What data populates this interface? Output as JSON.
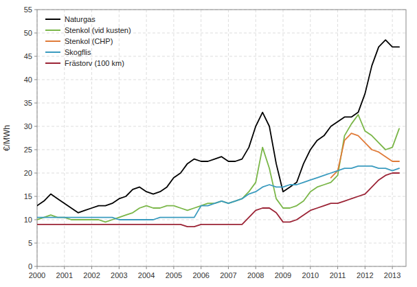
{
  "chart_data": {
    "type": "line",
    "y_label": "€/MWh",
    "xlim": [
      2000,
      2013.5
    ],
    "ylim": [
      0,
      55
    ],
    "xticks": [
      2000,
      2001,
      2002,
      2003,
      2004,
      2005,
      2006,
      2007,
      2008,
      2009,
      2010,
      2011,
      2012,
      2013
    ],
    "yticks": [
      0,
      5,
      10,
      15,
      20,
      25,
      30,
      35,
      40,
      45,
      50,
      55
    ],
    "grid": true,
    "legend": "upper-left",
    "x": [
      2000.0,
      2000.25,
      2000.5,
      2000.75,
      2001.0,
      2001.25,
      2001.5,
      2001.75,
      2002.0,
      2002.25,
      2002.5,
      2002.75,
      2003.0,
      2003.25,
      2003.5,
      2003.75,
      2004.0,
      2004.25,
      2004.5,
      2004.75,
      2005.0,
      2005.25,
      2005.5,
      2005.75,
      2006.0,
      2006.25,
      2006.5,
      2006.75,
      2007.0,
      2007.25,
      2007.5,
      2007.75,
      2008.0,
      2008.25,
      2008.5,
      2008.75,
      2009.0,
      2009.25,
      2009.5,
      2009.75,
      2010.0,
      2010.25,
      2010.5,
      2010.75,
      2011.0,
      2011.25,
      2011.5,
      2011.75,
      2012.0,
      2012.25,
      2012.5,
      2012.75,
      2013.0,
      2013.25
    ],
    "series": [
      {
        "name": "Naturgas",
        "color": "#000000",
        "values": [
          13.0,
          14.0,
          15.5,
          14.5,
          13.5,
          12.5,
          11.5,
          12.0,
          12.5,
          13.0,
          13.0,
          13.5,
          14.5,
          15.0,
          16.5,
          17.0,
          16.0,
          15.5,
          16.0,
          17.0,
          19.0,
          20.0,
          22.0,
          23.0,
          22.5,
          22.5,
          23.0,
          23.5,
          22.5,
          22.5,
          23.0,
          25.5,
          30.0,
          33.0,
          30.0,
          22.0,
          16.0,
          17.0,
          18.0,
          22.0,
          25.0,
          27.0,
          28.0,
          30.0,
          31.0,
          32.0,
          32.0,
          33.0,
          37.0,
          43.0,
          47.0,
          48.5,
          47.0,
          47.0
        ]
      },
      {
        "name": "Stenkol (vid kusten)",
        "color": "#7ab648",
        "values": [
          10.0,
          10.5,
          11.0,
          10.5,
          10.5,
          10.0,
          10.0,
          10.0,
          10.0,
          10.0,
          9.5,
          10.0,
          10.5,
          11.0,
          11.5,
          12.5,
          13.0,
          12.5,
          12.5,
          13.0,
          13.0,
          12.5,
          12.0,
          12.5,
          13.0,
          13.5,
          13.5,
          14.0,
          13.5,
          14.0,
          14.5,
          16.0,
          18.0,
          25.5,
          21.0,
          14.5,
          12.5,
          12.5,
          13.0,
          14.0,
          16.0,
          17.0,
          17.5,
          18.0,
          19.5,
          28.0,
          30.5,
          32.5,
          29.0,
          28.0,
          26.5,
          25.0,
          25.5,
          29.5
        ]
      },
      {
        "name": "Stenkol (CHP)",
        "color": "#e07b39",
        "values": [
          null,
          null,
          null,
          null,
          null,
          null,
          null,
          null,
          null,
          null,
          null,
          null,
          null,
          null,
          null,
          null,
          null,
          null,
          null,
          null,
          null,
          null,
          null,
          null,
          null,
          null,
          null,
          null,
          null,
          null,
          null,
          null,
          null,
          null,
          null,
          null,
          null,
          null,
          null,
          null,
          null,
          null,
          null,
          19.0,
          20.5,
          27.0,
          28.5,
          28.0,
          26.5,
          25.0,
          24.5,
          23.5,
          22.5,
          22.5
        ]
      },
      {
        "name": "Skogflis",
        "color": "#3a9bbf",
        "values": [
          10.5,
          10.5,
          10.5,
          10.5,
          10.5,
          10.5,
          10.5,
          10.5,
          10.5,
          10.5,
          10.5,
          10.5,
          10.0,
          10.0,
          10.0,
          10.0,
          10.0,
          10.0,
          10.5,
          10.5,
          10.5,
          10.5,
          10.5,
          10.5,
          13.0,
          13.0,
          13.5,
          14.0,
          13.5,
          14.0,
          14.5,
          15.5,
          16.0,
          17.0,
          17.5,
          17.0,
          17.0,
          17.5,
          17.5,
          18.0,
          18.5,
          19.0,
          19.5,
          20.0,
          20.5,
          21.0,
          21.0,
          21.5,
          21.5,
          21.5,
          21.0,
          21.0,
          20.5,
          21.0
        ]
      },
      {
        "name": "Frästorv (100 km)",
        "color": "#9b2335",
        "values": [
          9.0,
          9.0,
          9.0,
          9.0,
          9.0,
          9.0,
          9.0,
          9.0,
          9.0,
          9.0,
          9.0,
          9.0,
          9.0,
          9.0,
          9.0,
          9.0,
          9.0,
          9.0,
          9.0,
          9.0,
          9.0,
          9.0,
          8.5,
          8.5,
          9.0,
          9.0,
          9.0,
          9.0,
          9.0,
          9.0,
          9.0,
          10.5,
          12.0,
          12.5,
          12.5,
          11.5,
          9.5,
          9.5,
          10.0,
          11.0,
          12.0,
          12.5,
          13.0,
          13.5,
          13.5,
          14.0,
          14.5,
          15.0,
          15.5,
          17.0,
          18.5,
          19.5,
          20.0,
          20.0
        ]
      }
    ]
  }
}
